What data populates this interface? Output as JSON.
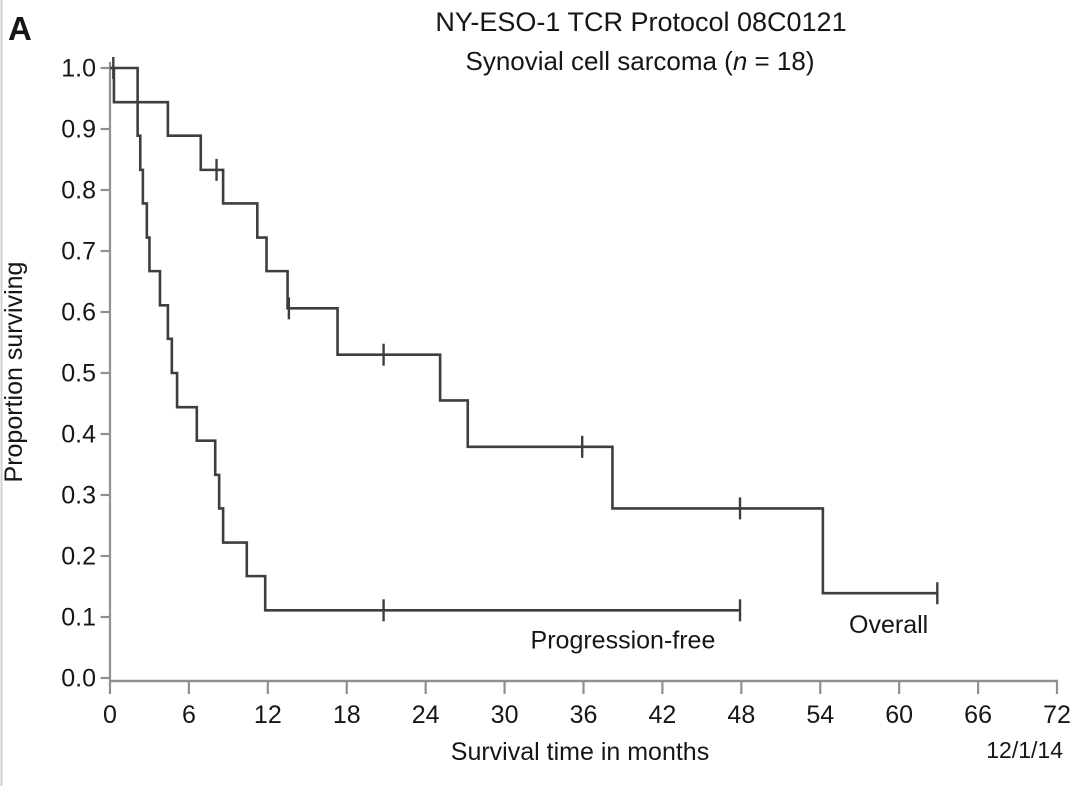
{
  "figure": {
    "panel_label": "A",
    "title": "NY-ESO-1 TCR Protocol 08C0121",
    "subtitle_prefix": "Synovial cell sarcoma (",
    "subtitle_italic": "n",
    "subtitle_suffix": " = 18)",
    "date_annotation": "12/1/14"
  },
  "chart_data": {
    "type": "line",
    "variant": "kaplan-meier-step",
    "title": "NY-ESO-1 TCR Protocol 08C0121",
    "subtitle": "Synovial cell sarcoma (n = 18)",
    "xlabel": "Survival time in months",
    "ylabel": "Proportion surviving",
    "xlim": [
      0,
      72
    ],
    "ylim": [
      0.0,
      1.0
    ],
    "grid": false,
    "legend_position": "labels-on-plot",
    "x_ticks": [
      0,
      6,
      12,
      18,
      24,
      30,
      36,
      42,
      48,
      54,
      60,
      66,
      72
    ],
    "y_ticks": [
      0.0,
      0.1,
      0.2,
      0.3,
      0.4,
      0.5,
      0.6,
      0.7,
      0.8,
      0.9,
      1.0
    ],
    "y_tick_labels": [
      "0.0",
      "0.1",
      "0.2",
      "0.3",
      "0.4",
      "0.5",
      "0.6",
      "0.7",
      "0.8",
      "0.9",
      "1.0"
    ],
    "colors": {
      "curve": "#3e3e3e",
      "axis": "#909090",
      "text": "#161616",
      "background": "#ffffff"
    },
    "series": [
      {
        "name": "Progression-free",
        "slug": "progression-free",
        "start_value": 1.0,
        "drops": [
          [
            0.3,
            0.944
          ],
          [
            2.1,
            0.889
          ],
          [
            2.3,
            0.833
          ],
          [
            2.5,
            0.778
          ],
          [
            2.8,
            0.722
          ],
          [
            3.0,
            0.667
          ],
          [
            3.8,
            0.611
          ],
          [
            4.4,
            0.556
          ],
          [
            4.7,
            0.5
          ],
          [
            5.1,
            0.444
          ],
          [
            6.6,
            0.389
          ],
          [
            8.0,
            0.333
          ],
          [
            8.3,
            0.278
          ],
          [
            8.6,
            0.222
          ],
          [
            10.4,
            0.167
          ],
          [
            11.8,
            0.111
          ]
        ],
        "end_month": 47.9,
        "censor_marks": [
          [
            20.8,
            0.111
          ],
          [
            47.9,
            0.111
          ]
        ],
        "label_at": [
          39.0,
          0.062
        ]
      },
      {
        "name": "Overall",
        "slug": "overall",
        "start_value": 1.0,
        "drops": [
          [
            2.1,
            0.944
          ],
          [
            4.4,
            0.889
          ],
          [
            6.9,
            0.833
          ],
          [
            8.6,
            0.778
          ],
          [
            11.2,
            0.722
          ],
          [
            11.9,
            0.667
          ],
          [
            13.5,
            0.606
          ],
          [
            17.3,
            0.53
          ],
          [
            25.1,
            0.455
          ],
          [
            27.2,
            0.379
          ],
          [
            38.2,
            0.278
          ],
          [
            54.2,
            0.139
          ]
        ],
        "end_month": 62.9,
        "censor_marks": [
          [
            0.25,
            1.0
          ],
          [
            8.1,
            0.833
          ],
          [
            13.6,
            0.606
          ],
          [
            20.8,
            0.53
          ],
          [
            35.9,
            0.379
          ],
          [
            47.9,
            0.278
          ],
          [
            62.9,
            0.139
          ]
        ],
        "label_at": [
          59.2,
          0.088
        ]
      }
    ]
  }
}
